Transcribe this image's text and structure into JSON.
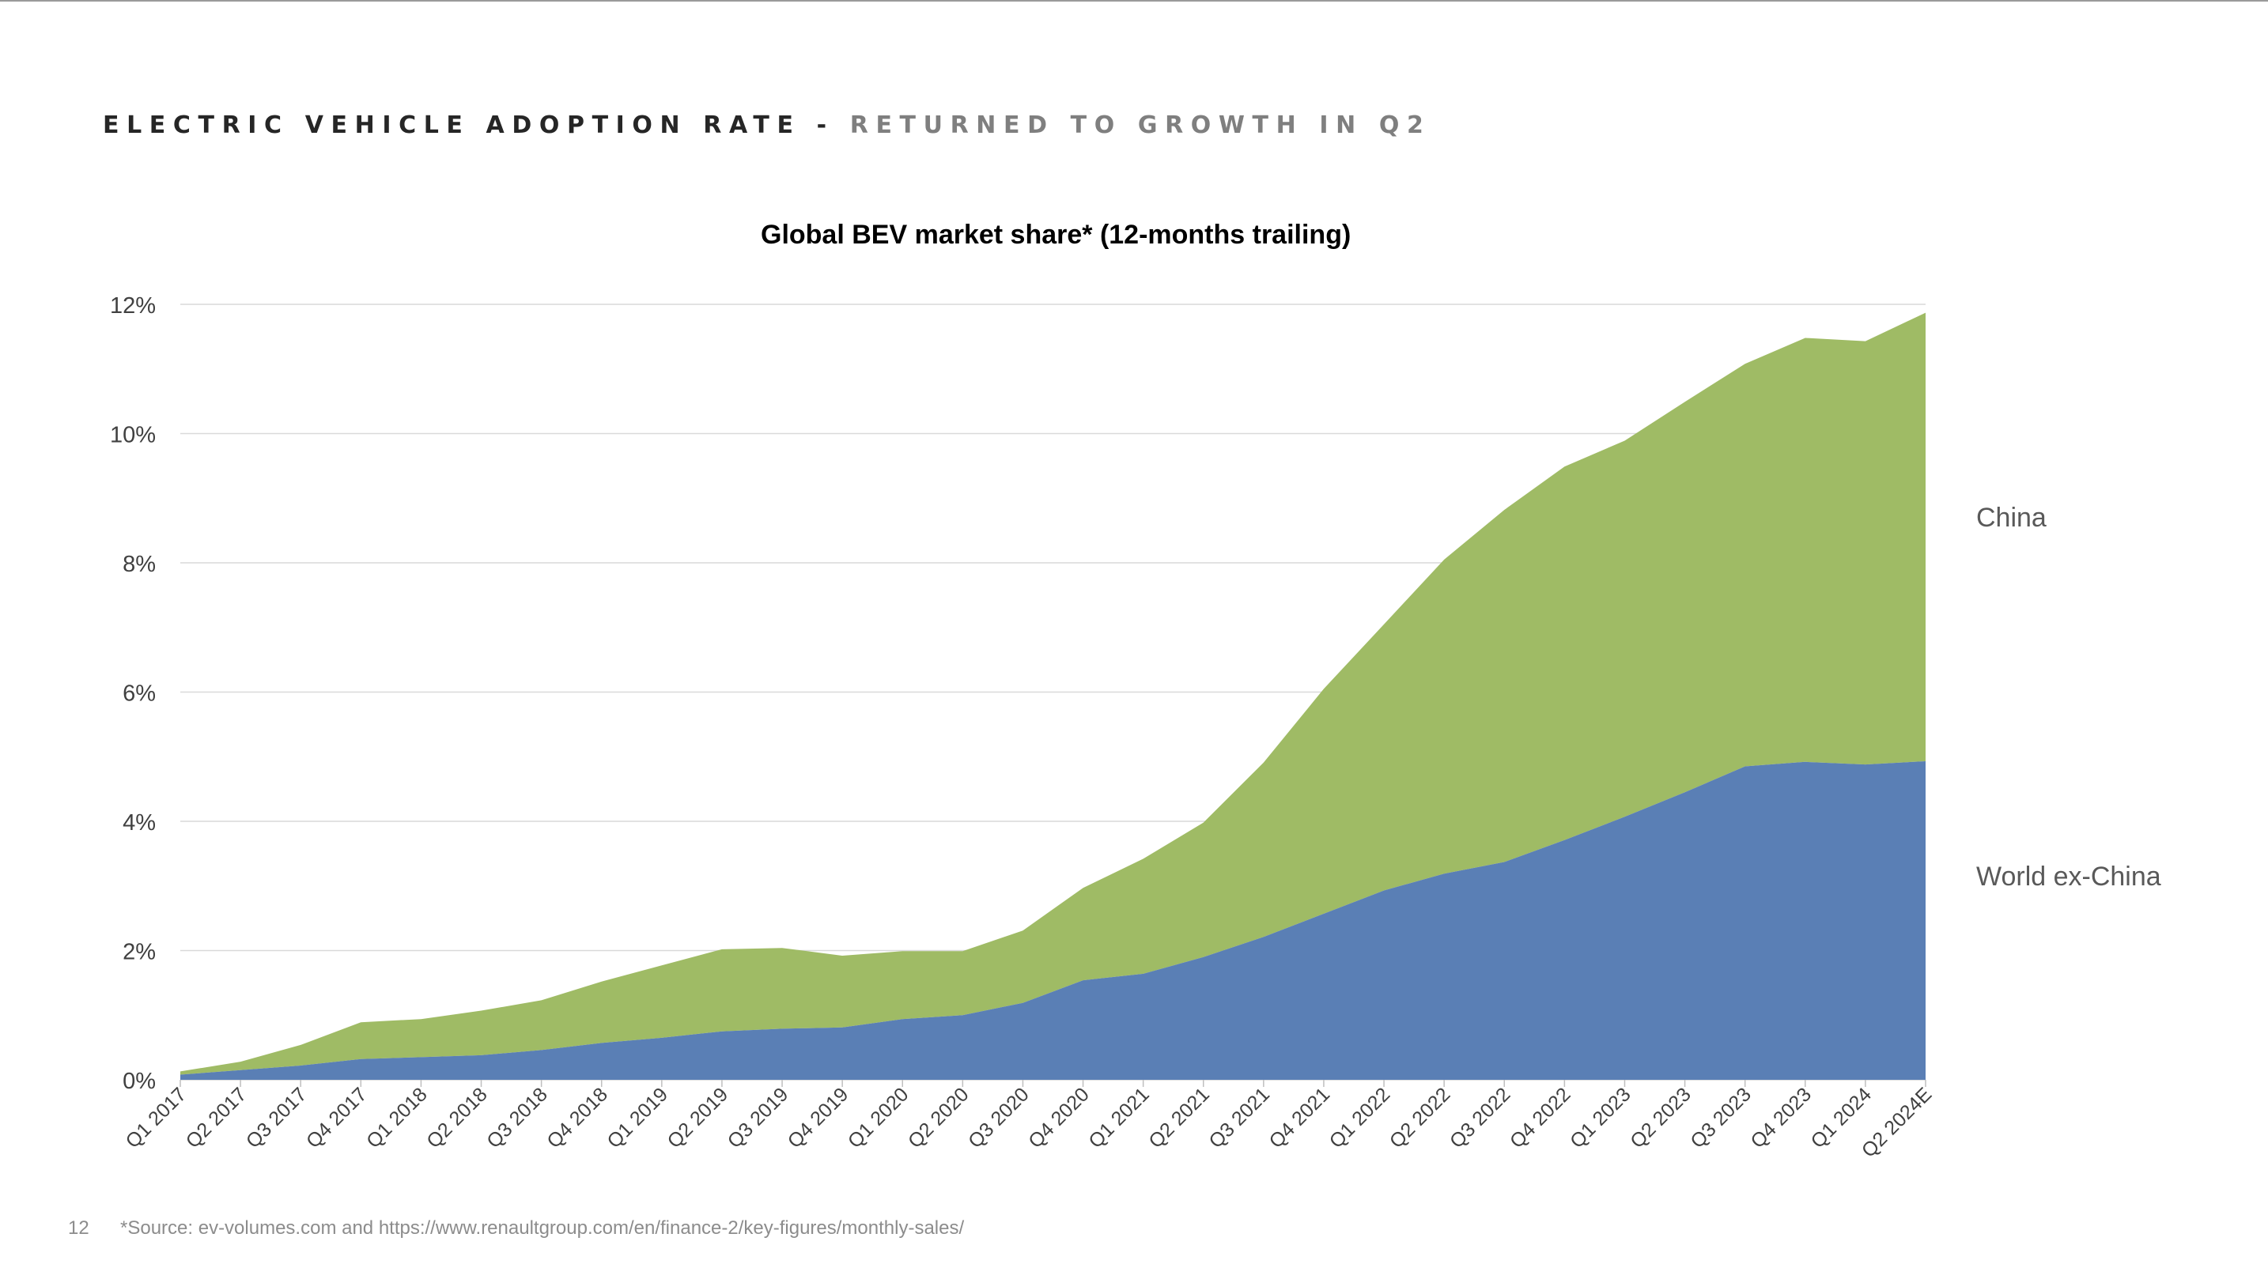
{
  "slide": {
    "title_main": "Electric Vehicle Adoption Rate",
    "title_separator": "-",
    "title_sub": "Returned to growth in Q2",
    "page_number": "12",
    "source": "*Source: ev-volumes.com and https://www.renaultgroup.com/en/finance-2/key-figures/monthly-sales/"
  },
  "colors": {
    "world_ex_china": "#5a7fb5",
    "china": "#9fbb65",
    "gridline": "#d9d9d9",
    "axis_text": "#404040"
  },
  "chart_data": {
    "type": "area",
    "stacked": true,
    "title": "Global BEV market share* (12-months trailing)",
    "categories": [
      "Q1 2017",
      "Q2 2017",
      "Q3 2017",
      "Q4 2017",
      "Q1 2018",
      "Q2 2018",
      "Q3 2018",
      "Q4 2018",
      "Q1 2019",
      "Q2 2019",
      "Q3 2019",
      "Q4 2019",
      "Q1 2020",
      "Q2 2020",
      "Q3 2020",
      "Q4 2020",
      "Q1 2021",
      "Q2 2021",
      "Q3 2021",
      "Q4 2021",
      "Q1 2022",
      "Q2 2022",
      "Q3 2022",
      "Q4 2022",
      "Q1 2023",
      "Q2 2023",
      "Q3 2023",
      "Q4 2023",
      "Q1 2024",
      "Q2 2024E"
    ],
    "series": [
      {
        "name": "World ex-China",
        "values": [
          0.08,
          0.15,
          0.22,
          0.32,
          0.35,
          0.38,
          0.46,
          0.57,
          0.65,
          0.75,
          0.79,
          0.81,
          0.94,
          1.0,
          1.19,
          1.54,
          1.64,
          1.9,
          2.21,
          2.57,
          2.93,
          3.19,
          3.37,
          3.71,
          4.07,
          4.45,
          4.85,
          4.92,
          4.88,
          4.93
        ]
      },
      {
        "name": "China",
        "values": [
          0.05,
          0.13,
          0.32,
          0.57,
          0.59,
          0.69,
          0.77,
          0.95,
          1.12,
          1.27,
          1.25,
          1.11,
          1.05,
          0.99,
          1.12,
          1.43,
          1.78,
          2.08,
          2.7,
          3.48,
          4.12,
          4.86,
          5.45,
          5.78,
          5.82,
          6.04,
          6.23,
          6.56,
          6.55,
          6.94
        ]
      }
    ],
    "ylim": [
      0,
      12
    ],
    "yticks": [
      "0%",
      "2%",
      "4%",
      "6%",
      "8%",
      "10%",
      "12%"
    ],
    "grid": true,
    "legend": "right, inline series labels"
  }
}
